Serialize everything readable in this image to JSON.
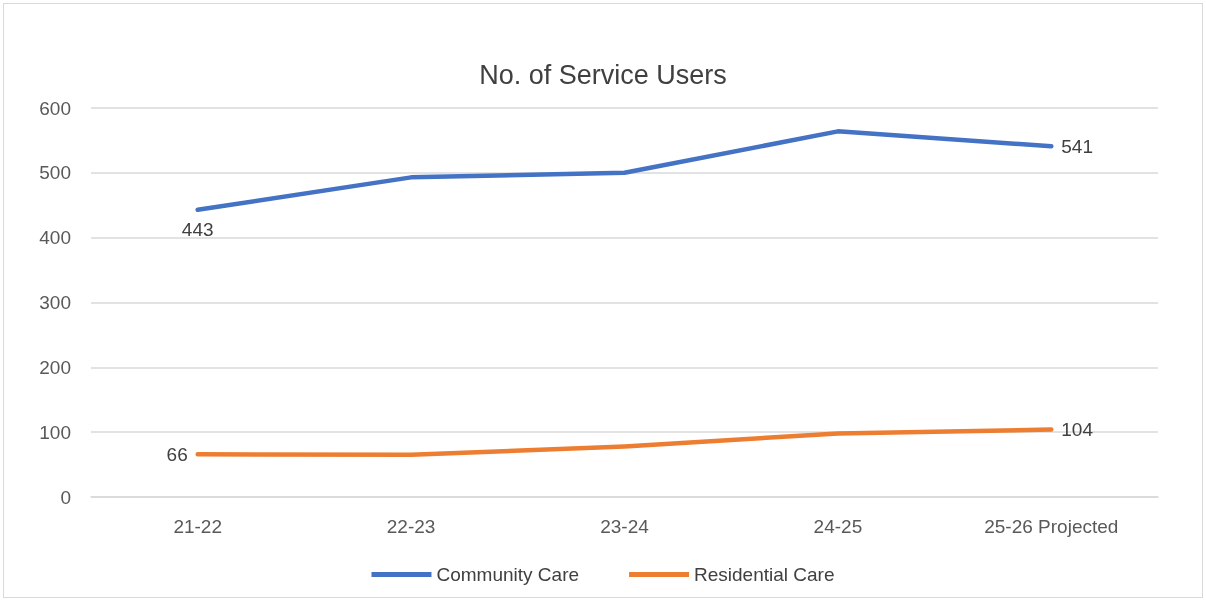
{
  "chart_data": {
    "type": "line",
    "title": "No. of Service Users",
    "categories": [
      "21-22",
      "22-23",
      "23-24",
      "24-25",
      "25-26 Projected"
    ],
    "series": [
      {
        "name": "Community Care",
        "color": "#4472c4",
        "values": [
          443,
          493,
          500,
          564,
          541
        ],
        "value_labels": [
          "443",
          null,
          null,
          null,
          "541"
        ]
      },
      {
        "name": "Residential Care",
        "color": "#ed7d31",
        "values": [
          66,
          65,
          78,
          98,
          104
        ],
        "value_labels": [
          "66",
          null,
          null,
          null,
          "104"
        ]
      }
    ],
    "ylim": [
      0,
      600
    ],
    "yticks": [
      0,
      100,
      200,
      300,
      400,
      500,
      600
    ],
    "grid": "y",
    "legend": "bottom",
    "marker": "none",
    "line_style": "solid"
  }
}
